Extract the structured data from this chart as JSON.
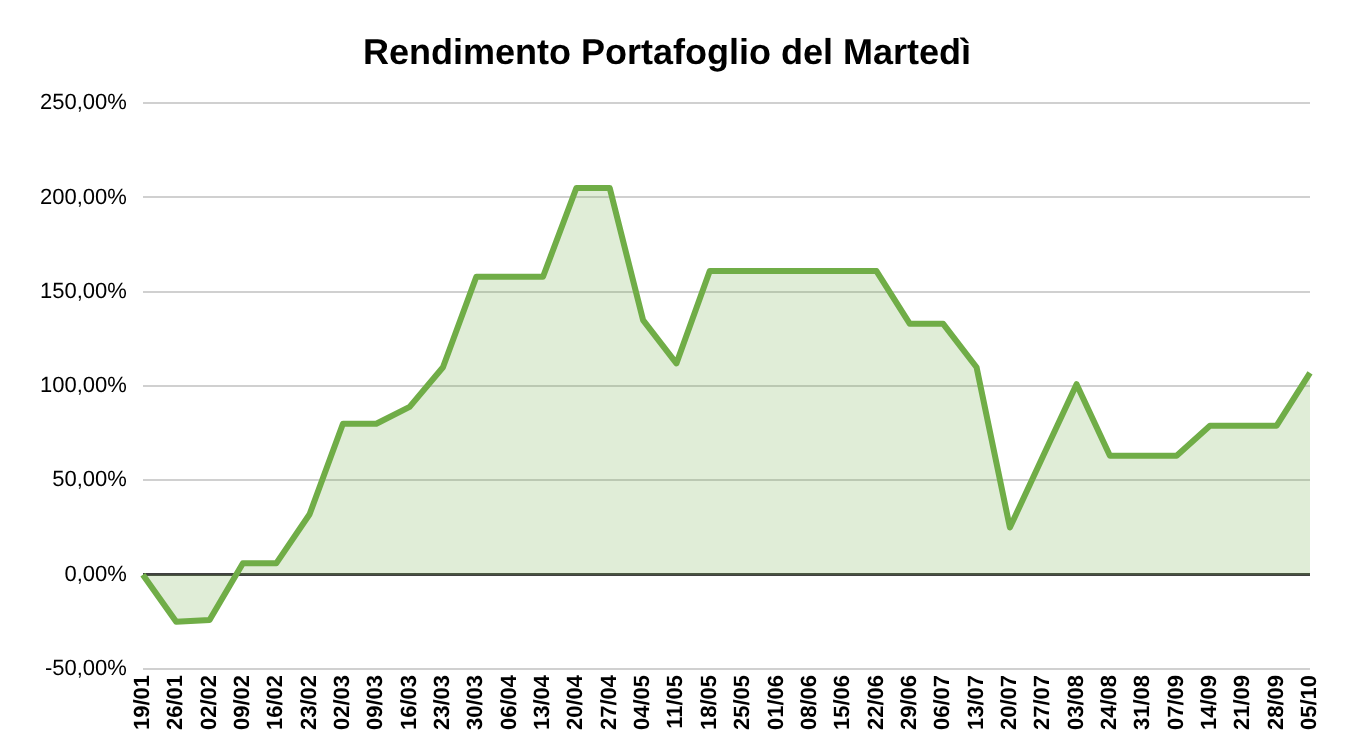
{
  "chart_data": {
    "type": "area",
    "title": "Rendimento Portafoglio del Martedì",
    "categories": [
      "19/01",
      "26/01",
      "02/02",
      "09/02",
      "16/02",
      "23/02",
      "02/03",
      "09/03",
      "16/03",
      "23/03",
      "30/03",
      "06/04",
      "13/04",
      "20/04",
      "27/04",
      "04/05",
      "11/05",
      "18/05",
      "25/05",
      "01/06",
      "08/06",
      "15/06",
      "22/06",
      "29/06",
      "06/07",
      "13/07",
      "20/07",
      "27/07",
      "03/08",
      "24/08",
      "31/08",
      "07/09",
      "14/09",
      "21/09",
      "28/09",
      "05/10"
    ],
    "series": [
      {
        "color": "#70ad47",
        "values": [
          0,
          -25,
          -24,
          6,
          6,
          32,
          80,
          80,
          89,
          110,
          158,
          158,
          158,
          205,
          205,
          135,
          112,
          161,
          161,
          161,
          161,
          161,
          161,
          133,
          133,
          110,
          25,
          63,
          101,
          63,
          63,
          63,
          79,
          79,
          79,
          107
        ]
      }
    ],
    "ylim": [
      -50,
      250
    ],
    "yticks": [
      {
        "value": -50,
        "label": "-50,00%"
      },
      {
        "value": 0,
        "label": "0,00%"
      },
      {
        "value": 50,
        "label": "50,00%"
      },
      {
        "value": 100,
        "label": "100,00%"
      },
      {
        "value": 150,
        "label": "150,00%"
      },
      {
        "value": 200,
        "label": "200,00%"
      },
      {
        "value": 250,
        "label": "250,00%"
      }
    ],
    "grid": "y",
    "legend": false
  }
}
